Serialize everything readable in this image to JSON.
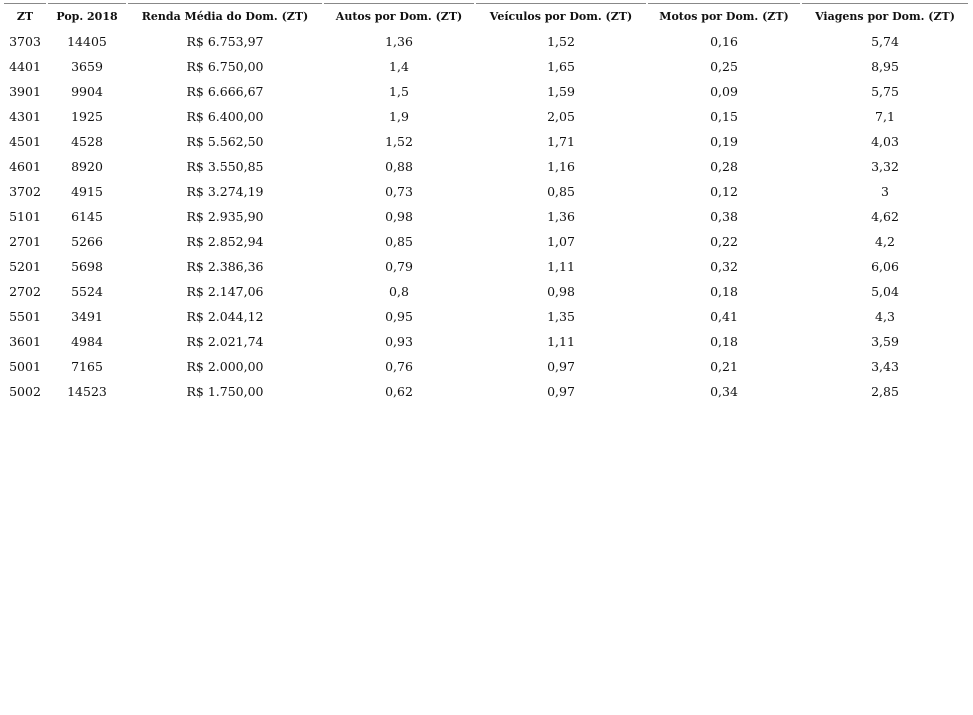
{
  "table": {
    "header": [
      "ZT",
      "Pop. 2018",
      "Renda Média do Dom. (ZT)",
      "Autos por Dom. (ZT)",
      "Veículos por Dom. (ZT)",
      "Motos por Dom. (ZT)",
      "Viagens por Dom. (ZT)"
    ],
    "rows": [
      [
        "3703",
        "14405",
        "R$ 6.753,97",
        "1,36",
        "1,52",
        "0,16",
        "5,74"
      ],
      [
        "4401",
        "3659",
        "R$ 6.750,00",
        "1,4",
        "1,65",
        "0,25",
        "8,95"
      ],
      [
        "3901",
        "9904",
        "R$ 6.666,67",
        "1,5",
        "1,59",
        "0,09",
        "5,75"
      ],
      [
        "4301",
        "1925",
        "R$ 6.400,00",
        "1,9",
        "2,05",
        "0,15",
        "7,1"
      ],
      [
        "4501",
        "4528",
        "R$ 5.562,50",
        "1,52",
        "1,71",
        "0,19",
        "4,03"
      ],
      [
        "4601",
        "8920",
        "R$ 3.550,85",
        "0,88",
        "1,16",
        "0,28",
        "3,32"
      ],
      [
        "3702",
        "4915",
        "R$ 3.274,19",
        "0,73",
        "0,85",
        "0,12",
        "3"
      ],
      [
        "5101",
        "6145",
        "R$ 2.935,90",
        "0,98",
        "1,36",
        "0,38",
        "4,62"
      ],
      [
        "2701",
        "5266",
        "R$ 2.852,94",
        "0,85",
        "1,07",
        "0,22",
        "4,2"
      ],
      [
        "5201",
        "5698",
        "R$ 2.386,36",
        "0,79",
        "1,11",
        "0,32",
        "6,06"
      ],
      [
        "2702",
        "5524",
        "R$ 2.147,06",
        "0,8",
        "0,98",
        "0,18",
        "5,04"
      ],
      [
        "5501",
        "3491",
        "R$ 2.044,12",
        "0,95",
        "1,35",
        "0,41",
        "4,3"
      ],
      [
        "3601",
        "4984",
        "R$ 2.021,74",
        "0,93",
        "1,11",
        "0,18",
        "3,59"
      ],
      [
        "5001",
        "7165",
        "R$ 2.000,00",
        "0,76",
        "0,97",
        "0,21",
        "3,43"
      ],
      [
        "5002",
        "14523",
        "R$ 1.750,00",
        "0,62",
        "0,97",
        "0,34",
        "2,85"
      ]
    ]
  }
}
